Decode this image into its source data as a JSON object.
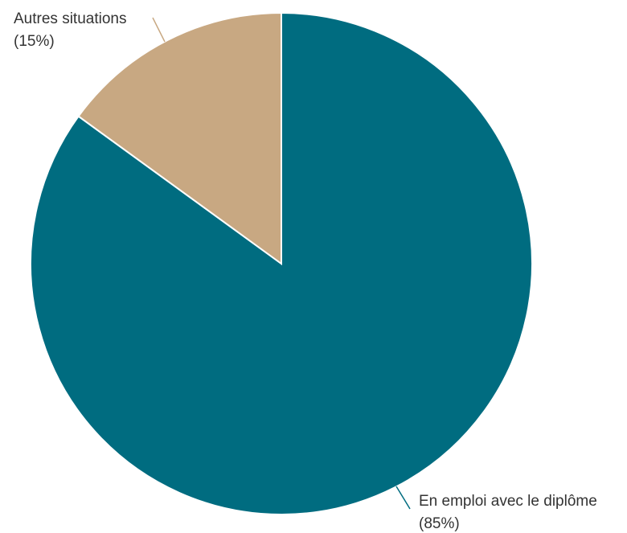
{
  "chart_data": {
    "type": "pie",
    "title": "",
    "slices": [
      {
        "label": "En emploi avec le diplôme",
        "value": 85,
        "value_label": "(85%)",
        "color": "#006c80"
      },
      {
        "label": "Autres situations",
        "value": 15,
        "value_label": "(15%)",
        "color": "#c8a882"
      }
    ],
    "start": "top",
    "direction": "clockwise",
    "slice_border_color": "#ffffff",
    "legend": "none"
  }
}
